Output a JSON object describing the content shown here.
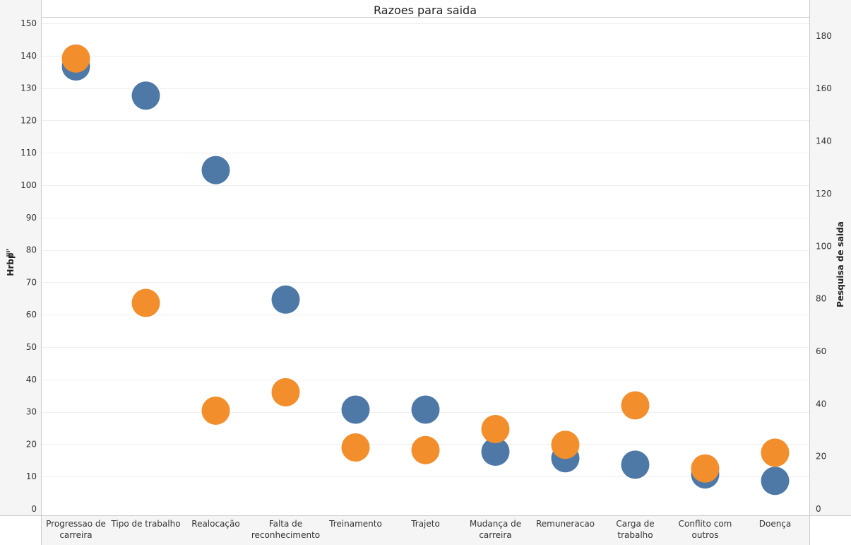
{
  "chart_data": {
    "type": "scatter",
    "title": "Razoes para saida",
    "ylabel_left": "Hrbp",
    "ylabel_right": "Pesquisa de saida",
    "categories": [
      "Progressao de carreira",
      "Tipo de trabalho",
      "Realocação",
      "Falta de reconhecimento",
      "Treinamento",
      "Trajeto",
      "Mudança de carreira",
      "Remuneracao",
      "Carga de trabalho",
      "Conflito com outros",
      "Doença"
    ],
    "category_lines": [
      [
        "Progressao de",
        "carreira"
      ],
      [
        "Tipo de trabalho"
      ],
      [
        "Realocação"
      ],
      [
        "Falta de",
        "reconhecimento"
      ],
      [
        "Treinamento"
      ],
      [
        "Trajeto"
      ],
      [
        "Mudança de",
        "carreira"
      ],
      [
        "Remuneracao"
      ],
      [
        "Carga de",
        "trabalho"
      ],
      [
        "Conflito com",
        "outros"
      ],
      [
        "Doença"
      ]
    ],
    "ylim_left": [
      0,
      150
    ],
    "ylim_right": [
      0,
      184
    ],
    "yticks_left": [
      0,
      10,
      20,
      30,
      40,
      50,
      60,
      70,
      80,
      90,
      100,
      110,
      120,
      130,
      140,
      150
    ],
    "yticks_right": [
      0,
      20,
      40,
      60,
      80,
      100,
      120,
      140,
      160,
      180
    ],
    "grid": true,
    "series": [
      {
        "axis": "left",
        "color": "#4e79a7",
        "values": [
          137,
          128,
          105,
          65,
          31,
          31,
          18,
          16,
          14,
          11,
          9
        ]
      },
      {
        "axis": "right",
        "color": "#f28e2b",
        "values": [
          171,
          78,
          37,
          44,
          23,
          22,
          30,
          24,
          39,
          15,
          21
        ]
      }
    ]
  }
}
